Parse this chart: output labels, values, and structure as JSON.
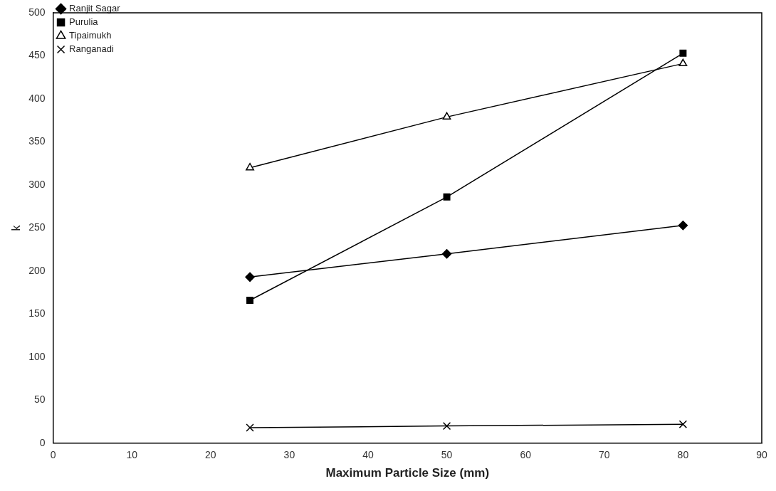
{
  "chart_data": {
    "type": "line",
    "xlabel": "Maximum Particle Size (mm)",
    "ylabel": "k",
    "xlim": [
      0,
      90
    ],
    "xticks": [
      0,
      10,
      20,
      30,
      40,
      50,
      60,
      70,
      80,
      90
    ],
    "ylim": [
      0,
      500
    ],
    "yticks": [
      0,
      50,
      100,
      150,
      200,
      250,
      300,
      350,
      400,
      450,
      500
    ],
    "grid": false,
    "legend": "top left",
    "line_style": "solid",
    "x": [
      25,
      50,
      80
    ],
    "series": [
      {
        "name": "Ranjit Sagar",
        "color": "#000000",
        "marker": "diamond",
        "values": [
          193,
          220,
          253
        ]
      },
      {
        "name": "Purulia",
        "color": "#000000",
        "marker": "square",
        "values": [
          166,
          286,
          453
        ]
      },
      {
        "name": "Tipaimukh",
        "color": "#000000",
        "marker": "triangle",
        "values": [
          320,
          379,
          441
        ]
      },
      {
        "name": "Ranganadi",
        "color": "#000000",
        "marker": "cross",
        "values": [
          18,
          20,
          22
        ]
      }
    ]
  }
}
